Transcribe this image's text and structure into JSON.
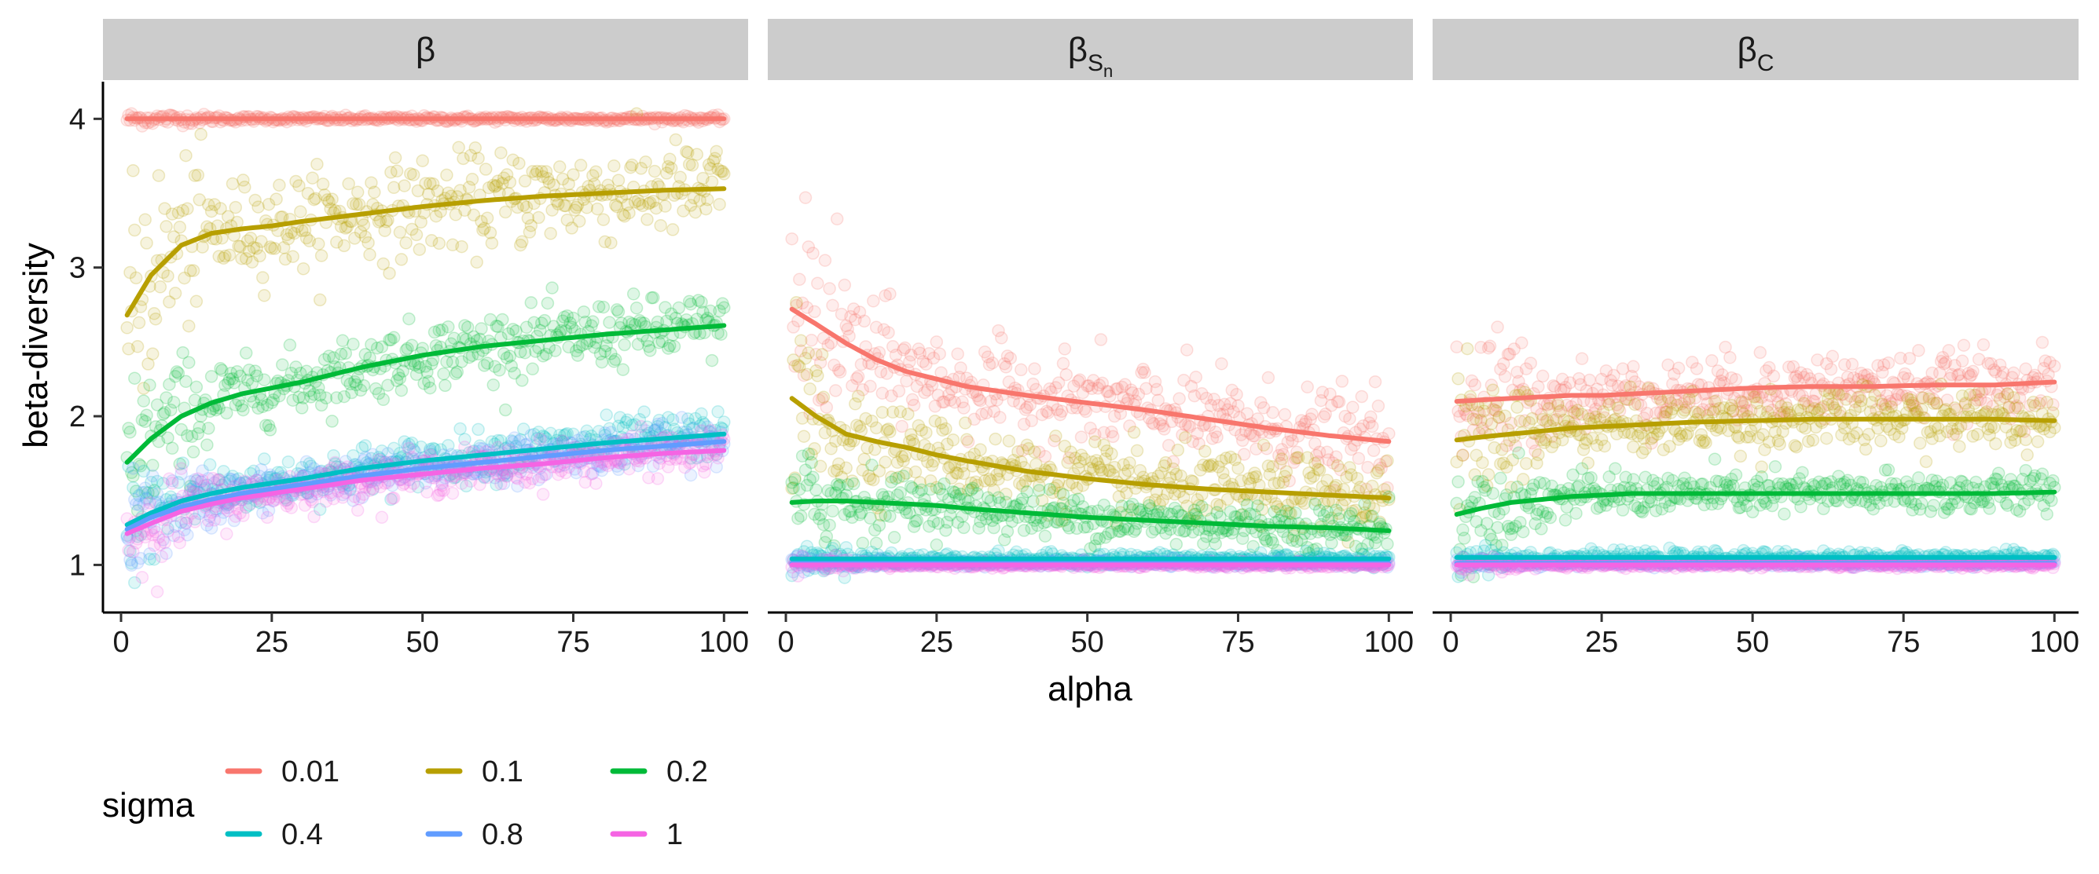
{
  "chart_data": {
    "type": "scatter",
    "facets": [
      {
        "id": "beta",
        "label_main": "β",
        "label_sub": "",
        "label_subsub": ""
      },
      {
        "id": "beta_sn",
        "label_main": "β",
        "label_sub": "S",
        "label_subsub": "n"
      },
      {
        "id": "beta_c",
        "label_main": "β",
        "label_sub": "C",
        "label_subsub": ""
      }
    ],
    "xlabel": "alpha",
    "ylabel": "beta-diversity",
    "xlim": [
      -3,
      104
    ],
    "ylim": [
      0.68,
      4.25
    ],
    "xticks": [
      0,
      25,
      50,
      75,
      100
    ],
    "yticks": [
      1,
      2,
      3,
      4
    ],
    "legend": {
      "title": "sigma",
      "position": "bottom-left",
      "entries": [
        {
          "label": "0.01",
          "color": "#F8766D"
        },
        {
          "label": "0.1",
          "color": "#B79F00"
        },
        {
          "label": "0.2",
          "color": "#00BA38"
        },
        {
          "label": "0.4",
          "color": "#00BFC4"
        },
        {
          "label": "0.8",
          "color": "#619CFF"
        },
        {
          "label": "1",
          "color": "#F564E3"
        }
      ]
    },
    "smooth_x": [
      1,
      5,
      10,
      15,
      20,
      25,
      30,
      40,
      50,
      60,
      70,
      80,
      90,
      100
    ],
    "series": [
      {
        "facet": "beta",
        "sigma": "0.01",
        "color": "#F8766D",
        "values": [
          4.0,
          4.0,
          4.0,
          4.0,
          4.0,
          4.0,
          4.0,
          4.0,
          4.0,
          4.0,
          4.0,
          4.0,
          4.0,
          4.0
        ],
        "spread": 0.01
      },
      {
        "facet": "beta",
        "sigma": "0.1",
        "color": "#B79F00",
        "values": [
          2.68,
          2.95,
          3.15,
          3.23,
          3.26,
          3.28,
          3.31,
          3.36,
          3.41,
          3.45,
          3.48,
          3.5,
          3.52,
          3.53
        ],
        "spread": 0.16
      },
      {
        "facet": "beta",
        "sigma": "0.2",
        "color": "#00BA38",
        "values": [
          1.69,
          1.85,
          2.0,
          2.09,
          2.15,
          2.19,
          2.23,
          2.33,
          2.41,
          2.47,
          2.51,
          2.55,
          2.58,
          2.61
        ],
        "spread": 0.11
      },
      {
        "facet": "beta",
        "sigma": "0.4",
        "color": "#00BFC4",
        "values": [
          1.27,
          1.35,
          1.43,
          1.48,
          1.52,
          1.55,
          1.58,
          1.65,
          1.7,
          1.74,
          1.78,
          1.82,
          1.85,
          1.88
        ],
        "spread": 0.08
      },
      {
        "facet": "beta",
        "sigma": "0.8",
        "color": "#619CFF",
        "values": [
          1.24,
          1.32,
          1.39,
          1.44,
          1.48,
          1.51,
          1.54,
          1.6,
          1.65,
          1.69,
          1.73,
          1.77,
          1.8,
          1.83
        ],
        "spread": 0.07
      },
      {
        "facet": "beta",
        "sigma": "1",
        "color": "#F564E3",
        "values": [
          1.21,
          1.28,
          1.36,
          1.41,
          1.45,
          1.48,
          1.51,
          1.57,
          1.61,
          1.65,
          1.68,
          1.72,
          1.75,
          1.77
        ],
        "spread": 0.07
      },
      {
        "facet": "beta_sn",
        "sigma": "0.01",
        "color": "#F8766D",
        "values": [
          2.72,
          2.62,
          2.49,
          2.38,
          2.3,
          2.25,
          2.2,
          2.14,
          2.09,
          2.04,
          1.98,
          1.92,
          1.87,
          1.83
        ],
        "spread": 0.15
      },
      {
        "facet": "beta_sn",
        "sigma": "0.1",
        "color": "#B79F00",
        "values": [
          2.12,
          2.0,
          1.88,
          1.83,
          1.79,
          1.74,
          1.7,
          1.63,
          1.58,
          1.54,
          1.51,
          1.49,
          1.47,
          1.45
        ],
        "spread": 0.12
      },
      {
        "facet": "beta_sn",
        "sigma": "0.2",
        "color": "#00BA38",
        "values": [
          1.42,
          1.43,
          1.43,
          1.42,
          1.41,
          1.4,
          1.38,
          1.35,
          1.32,
          1.3,
          1.28,
          1.26,
          1.25,
          1.23
        ],
        "spread": 0.08
      },
      {
        "facet": "beta_sn",
        "sigma": "0.4",
        "color": "#00BFC4",
        "values": [
          1.04,
          1.04,
          1.04,
          1.04,
          1.04,
          1.04,
          1.04,
          1.04,
          1.04,
          1.04,
          1.04,
          1.04,
          1.04,
          1.04
        ],
        "spread": 0.02
      },
      {
        "facet": "beta_sn",
        "sigma": "0.8",
        "color": "#619CFF",
        "values": [
          1.01,
          1.01,
          1.01,
          1.01,
          1.01,
          1.01,
          1.01,
          1.01,
          1.01,
          1.01,
          1.01,
          1.01,
          1.01,
          1.01
        ],
        "spread": 0.01
      },
      {
        "facet": "beta_sn",
        "sigma": "1",
        "color": "#F564E3",
        "values": [
          1.0,
          1.0,
          1.0,
          1.0,
          1.0,
          1.0,
          1.0,
          1.0,
          1.0,
          1.0,
          1.0,
          1.0,
          1.0,
          1.0
        ],
        "spread": 0.01
      },
      {
        "facet": "beta_c",
        "sigma": "0.01",
        "color": "#F8766D",
        "values": [
          2.1,
          2.11,
          2.12,
          2.13,
          2.14,
          2.14,
          2.15,
          2.17,
          2.19,
          2.2,
          2.2,
          2.21,
          2.21,
          2.23
        ],
        "spread": 0.11
      },
      {
        "facet": "beta_c",
        "sigma": "0.1",
        "color": "#B79F00",
        "values": [
          1.84,
          1.86,
          1.88,
          1.9,
          1.92,
          1.93,
          1.94,
          1.96,
          1.97,
          1.98,
          1.98,
          1.98,
          1.98,
          1.97
        ],
        "spread": 0.1
      },
      {
        "facet": "beta_c",
        "sigma": "0.2",
        "color": "#00BA38",
        "values": [
          1.34,
          1.38,
          1.42,
          1.44,
          1.46,
          1.47,
          1.48,
          1.48,
          1.48,
          1.48,
          1.48,
          1.48,
          1.48,
          1.49
        ],
        "spread": 0.07
      },
      {
        "facet": "beta_c",
        "sigma": "0.4",
        "color": "#00BFC4",
        "values": [
          1.05,
          1.05,
          1.05,
          1.05,
          1.05,
          1.05,
          1.05,
          1.05,
          1.05,
          1.05,
          1.05,
          1.05,
          1.05,
          1.05
        ],
        "spread": 0.02
      },
      {
        "facet": "beta_c",
        "sigma": "0.8",
        "color": "#619CFF",
        "values": [
          1.01,
          1.01,
          1.01,
          1.01,
          1.01,
          1.01,
          1.01,
          1.01,
          1.01,
          1.01,
          1.01,
          1.01,
          1.01,
          1.01
        ],
        "spread": 0.01
      },
      {
        "facet": "beta_c",
        "sigma": "1",
        "color": "#F564E3",
        "values": [
          1.0,
          1.0,
          1.0,
          1.0,
          1.0,
          1.0,
          1.0,
          1.0,
          1.0,
          1.0,
          1.0,
          1.0,
          1.0,
          1.0
        ],
        "spread": 0.01
      }
    ]
  }
}
